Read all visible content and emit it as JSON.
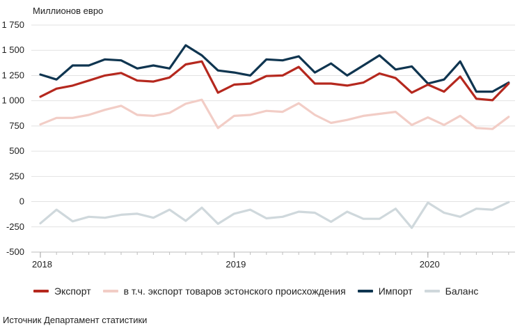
{
  "unit_label": "Миллионов евро",
  "source": "Источник Департамент статистики",
  "chart_data": {
    "type": "line",
    "ylabel": "",
    "xlabel": "",
    "ylim": [
      -500,
      1750
    ],
    "y_ticks": [
      -500,
      -250,
      0,
      250,
      500,
      750,
      1000,
      1250,
      1500,
      1750
    ],
    "y_tick_labels": [
      "-500",
      "-250",
      "0",
      "250",
      "500",
      "750",
      "1 000",
      "1 250",
      "1 500",
      "1 750"
    ],
    "x_ticks": [
      {
        "label": "2018",
        "index": 0
      },
      {
        "label": "2019",
        "index": 12
      },
      {
        "label": "2020",
        "index": 24
      }
    ],
    "grid": "horizontal",
    "legend_position": "bottom",
    "x": [
      "2018-01",
      "2018-02",
      "2018-03",
      "2018-04",
      "2018-05",
      "2018-06",
      "2018-07",
      "2018-08",
      "2018-09",
      "2018-10",
      "2018-11",
      "2018-12",
      "2019-01",
      "2019-02",
      "2019-03",
      "2019-04",
      "2019-05",
      "2019-06",
      "2019-07",
      "2019-08",
      "2019-09",
      "2019-10",
      "2019-11",
      "2019-12",
      "2020-01",
      "2020-02",
      "2020-03",
      "2020-04",
      "2020-05",
      "2020-06"
    ],
    "series": [
      {
        "name": "Экспорт",
        "color": "#b5281e",
        "values": [
          1040,
          1120,
          1150,
          1200,
          1250,
          1275,
          1200,
          1190,
          1230,
          1360,
          1390,
          1080,
          1160,
          1170,
          1245,
          1250,
          1335,
          1170,
          1170,
          1150,
          1180,
          1270,
          1225,
          1080,
          1160,
          1090,
          1240,
          1020,
          1005,
          1170
        ]
      },
      {
        "name": "в т.ч. экспорт товаров эстонского происхождения",
        "color": "#f2cdc6",
        "values": [
          765,
          830,
          830,
          860,
          910,
          950,
          860,
          850,
          880,
          970,
          1010,
          730,
          850,
          860,
          900,
          890,
          975,
          860,
          780,
          810,
          850,
          870,
          890,
          760,
          835,
          760,
          850,
          730,
          720,
          840
        ]
      },
      {
        "name": "Импорт",
        "color": "#0f3550",
        "values": [
          1260,
          1210,
          1350,
          1350,
          1410,
          1400,
          1320,
          1350,
          1320,
          1550,
          1450,
          1300,
          1280,
          1250,
          1410,
          1400,
          1440,
          1280,
          1370,
          1250,
          1350,
          1450,
          1310,
          1340,
          1170,
          1210,
          1390,
          1090,
          1090,
          1180
        ]
      },
      {
        "name": "Баланс",
        "color": "#cfd8dc",
        "values": [
          -215,
          -80,
          -195,
          -150,
          -160,
          -130,
          -120,
          -160,
          -80,
          -190,
          -60,
          -220,
          -120,
          -80,
          -165,
          -150,
          -100,
          -110,
          -200,
          -100,
          -170,
          -170,
          -70,
          -260,
          -10,
          -110,
          -150,
          -70,
          -80,
          -5
        ]
      }
    ]
  }
}
